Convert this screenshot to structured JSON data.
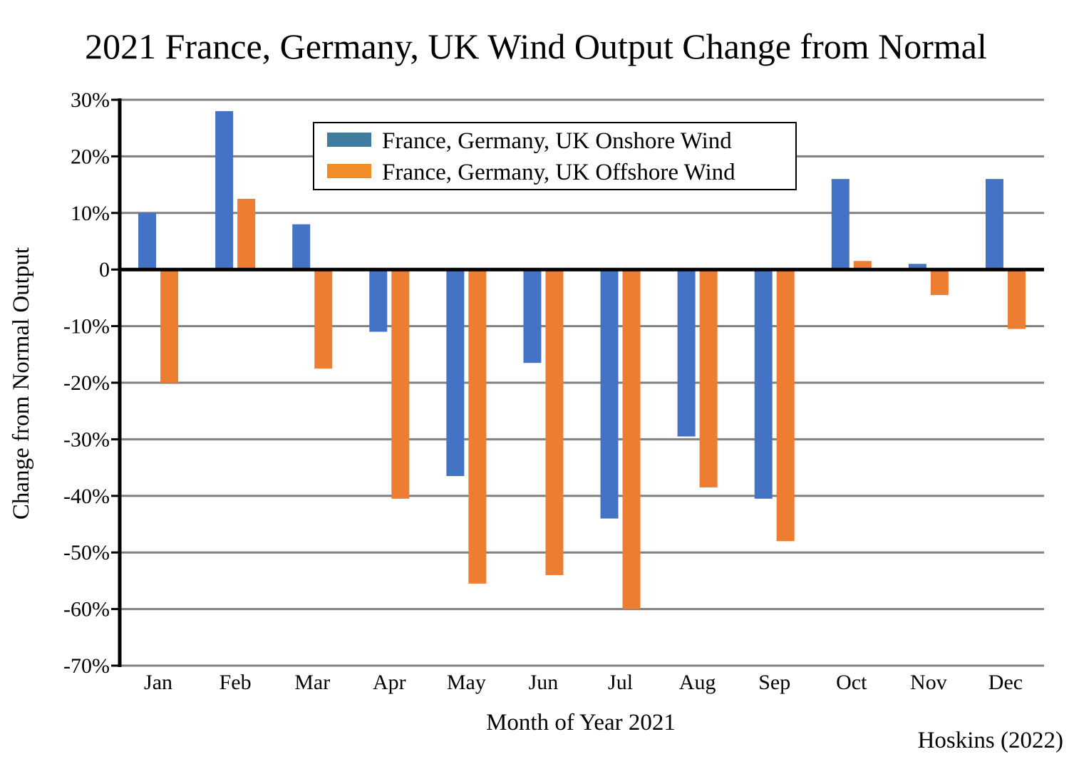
{
  "chart_data": {
    "type": "bar",
    "title": "2021 France, Germany, UK Wind Output Change from Normal",
    "xlabel": "Month of Year 2021",
    "ylabel": "Change from Normal Output",
    "categories": [
      "Jan",
      "Feb",
      "Mar",
      "Apr",
      "May",
      "Jun",
      "Jul",
      "Aug",
      "Sep",
      "Oct",
      "Nov",
      "Dec"
    ],
    "series": [
      {
        "name": "France, Germany, UK Onshore Wind",
        "color": "#4472C4",
        "legend_color": "#3E7DA0",
        "values": [
          10,
          28,
          8,
          -11,
          -36.5,
          -16.5,
          -44,
          -29.5,
          -40.5,
          16,
          1,
          16
        ]
      },
      {
        "name": "France, Germany, UK Offshore Wind",
        "color": "#ED7D31",
        "legend_color": "#F28C28",
        "values": [
          -20,
          12.5,
          -17.5,
          -40.5,
          -55.5,
          -54,
          -60,
          -38.5,
          -48,
          1.5,
          -4.5,
          -10.5
        ]
      }
    ],
    "ylim": [
      -70,
      30
    ],
    "yticks": [
      30,
      20,
      10,
      0,
      -10,
      -20,
      -30,
      -40,
      -50,
      -60,
      -70
    ],
    "ytick_labels": [
      "30%",
      "20%",
      "10%",
      "0",
      "-10%",
      "-20%",
      "-30%",
      "-40%",
      "-50%",
      "-60%",
      "-70%"
    ],
    "grid": true,
    "legend_position": "top-center"
  },
  "credit": "Hoskins (2022)"
}
